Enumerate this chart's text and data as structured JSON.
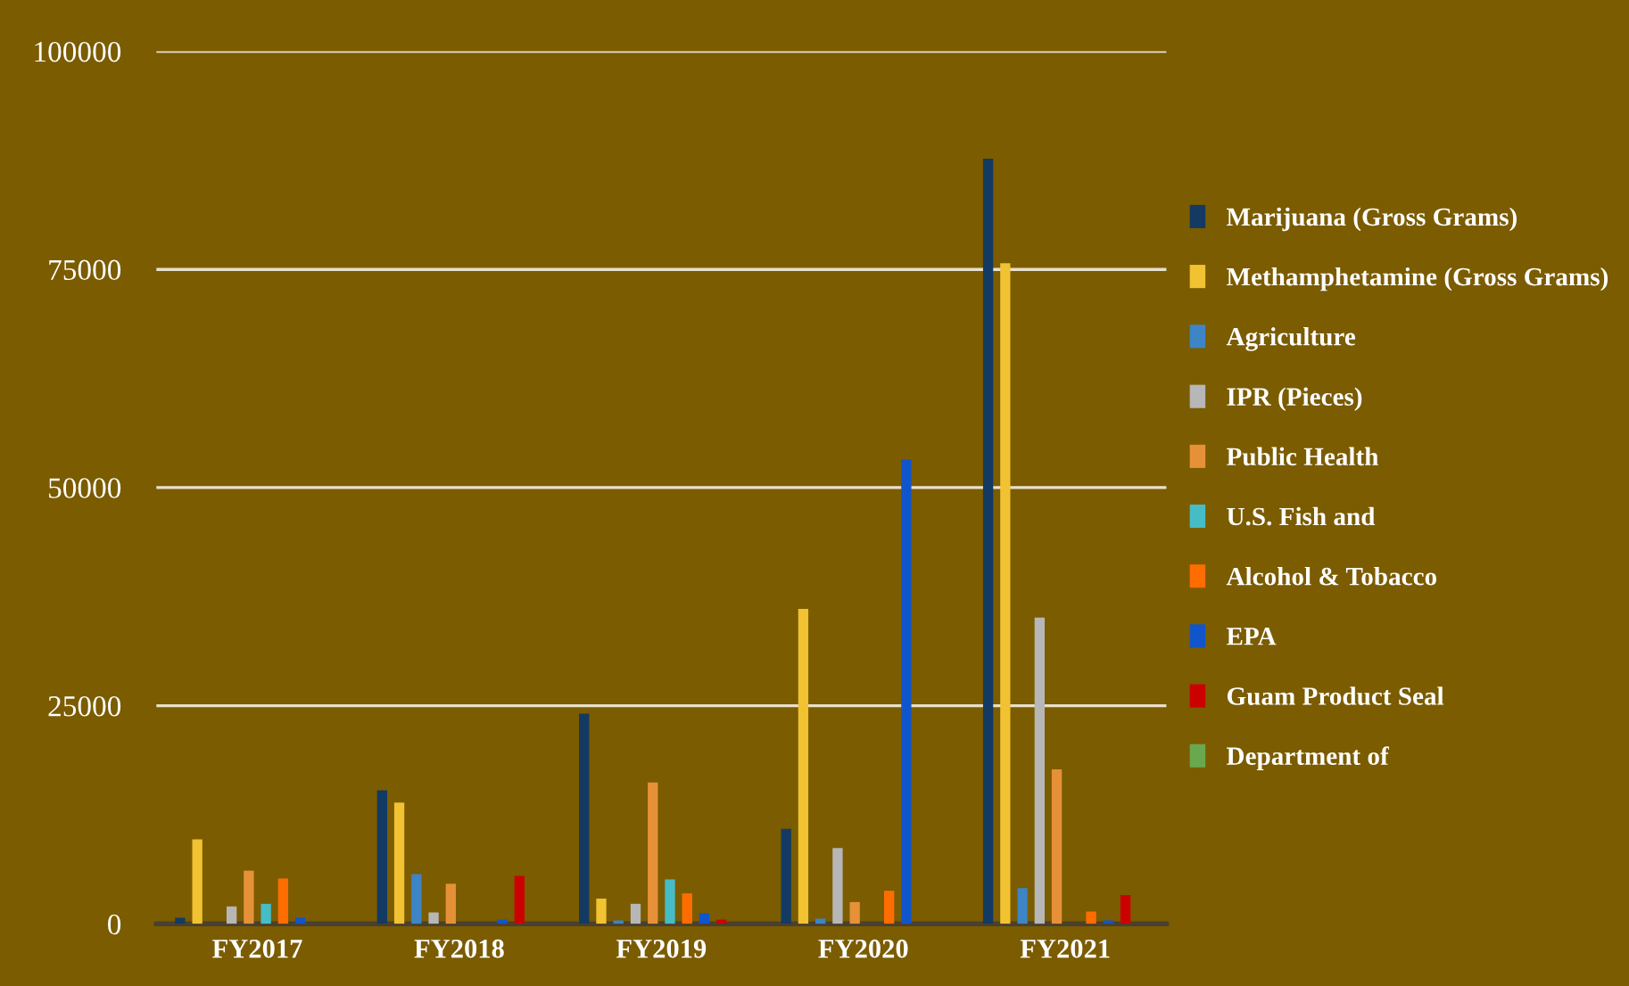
{
  "chart_data": {
    "type": "bar",
    "categories": [
      "FY2017",
      "FY2018",
      "FY2019",
      "FY2020",
      "FY2021"
    ],
    "series": [
      {
        "name": "Marijuana (Gross Grams)",
        "color": "#123a63",
        "values": [
          700,
          15300,
          24100,
          10900,
          87700
        ]
      },
      {
        "name": "Methamphetamine (Gross Grams)",
        "color": "#f1c232",
        "values": [
          9700,
          13900,
          2900,
          36100,
          75700
        ]
      },
      {
        "name": "Agriculture",
        "color": "#3d85c6",
        "values": [
          0,
          5700,
          400,
          600,
          4100
        ]
      },
      {
        "name": "IPR (Pieces)",
        "color": "#b7b7b7",
        "values": [
          2000,
          1300,
          2300,
          8700,
          35100
        ]
      },
      {
        "name": "Public Health",
        "color": "#e69138",
        "values": [
          6100,
          4600,
          16200,
          2500,
          17700
        ]
      },
      {
        "name": "U.S. Fish and",
        "color": "#46bdc6",
        "values": [
          2300,
          0,
          5100,
          0,
          0
        ]
      },
      {
        "name": "Alcohol & Tobacco",
        "color": "#ff6d01",
        "values": [
          5200,
          0,
          3500,
          3800,
          1400
        ]
      },
      {
        "name": "EPA",
        "color": "#1155cc",
        "values": [
          700,
          500,
          1200,
          53200,
          400
        ]
      },
      {
        "name": "Guam Product Seal",
        "color": "#cc0000",
        "values": [
          0,
          5500,
          500,
          0,
          3300
        ]
      },
      {
        "name": "Department of",
        "color": "#6aa84f",
        "values": [
          0,
          0,
          0,
          0,
          0
        ]
      }
    ],
    "ylim": [
      0,
      100000
    ],
    "yticks": [
      0,
      25000,
      50000,
      75000,
      100000
    ],
    "grid": "y",
    "legend": "right"
  }
}
